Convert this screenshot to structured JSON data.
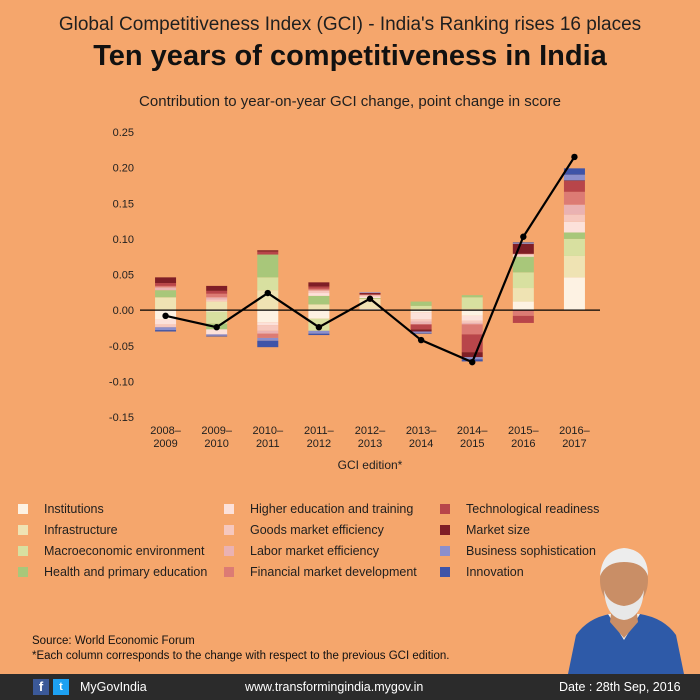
{
  "header": {
    "supertitle": "Global Competitiveness Index (GCI) - India's Ranking rises 16 places",
    "title": "Ten years of competitiveness in India"
  },
  "chart_data": {
    "type": "bar",
    "stacked": true,
    "subtitle": "Contribution to year-on-year GCI change, point change in score",
    "xlabel": "GCI edition*",
    "ylabel": "",
    "ylim": [
      -0.15,
      0.25
    ],
    "yticks": [
      "0.25",
      "0.20",
      "0.15",
      "0.10",
      "0.05",
      "0.00",
      "-0.05",
      "-0.10",
      "-0.15"
    ],
    "categories": [
      [
        "2008–",
        "2009"
      ],
      [
        "2009–",
        "2010"
      ],
      [
        "2010–",
        "2011"
      ],
      [
        "2011–",
        "2012"
      ],
      [
        "2012–",
        "2013"
      ],
      [
        "2013–",
        "2014"
      ],
      [
        "2014–",
        "2015"
      ],
      [
        "2015–",
        "2016"
      ],
      [
        "2016–",
        "2017"
      ]
    ],
    "series": [
      {
        "name": "Institutions",
        "color": "#FDF2E3",
        "values": [
          -0.013,
          -0.002,
          -0.017,
          -0.012,
          0.002,
          -0.003,
          -0.008,
          0.012,
          0.046
        ]
      },
      {
        "name": "Infrastructure",
        "color": "#EFE3B3",
        "values": [
          0.018,
          0.012,
          0.028,
          0.008,
          0.014,
          0.002,
          0.002,
          0.019,
          0.03
        ]
      },
      {
        "name": "Macroeconomic environment",
        "color": "#D8E0A0",
        "values": [
          0,
          -0.017,
          0.018,
          -0.017,
          0,
          0.004,
          0.016,
          0.022,
          0.024
        ]
      },
      {
        "name": "Health and primary education",
        "color": "#A8C77A",
        "values": [
          0.01,
          -0.008,
          0.032,
          0.012,
          0.001,
          0.006,
          0.003,
          0.022,
          0.009
        ]
      },
      {
        "name": "Higher education and training",
        "color": "#FCE1DA",
        "values": [
          -0.007,
          -0.007,
          -0.004,
          0.004,
          0.002,
          -0.01,
          -0.007,
          0.002,
          0.015
        ]
      },
      {
        "name": "Goods market efficiency",
        "color": "#F6C8BE",
        "values": [
          -0.004,
          0.003,
          -0.008,
          0.003,
          0.002,
          -0.003,
          -0.003,
          0.001,
          0.01
        ]
      },
      {
        "name": "Labor market efficiency",
        "color": "#EAB2B2",
        "values": [
          0.004,
          0.003,
          -0.004,
          0.001,
          0,
          -0.004,
          -0.002,
          0.001,
          0.014
        ]
      },
      {
        "name": "Financial market development",
        "color": "#DC7B74",
        "values": [
          0.002,
          0.005,
          -0.006,
          0.002,
          0.001,
          0,
          -0.014,
          -0.008,
          0.018
        ]
      },
      {
        "name": "Technological readiness",
        "color": "#B8454A",
        "values": [
          0.004,
          0.004,
          0.004,
          0.003,
          0,
          -0.007,
          -0.025,
          -0.01,
          0.015
        ]
      },
      {
        "name": "Market size",
        "color": "#7F1E26",
        "values": [
          0.008,
          0.007,
          0.002,
          0.006,
          0.002,
          -0.003,
          -0.007,
          0.014,
          0.001
        ]
      },
      {
        "name": "Business sophistication",
        "color": "#8C8FCC",
        "values": [
          -0.004,
          -0.002,
          -0.004,
          -0.004,
          0.001,
          -0.002,
          -0.003,
          0.001,
          0.008
        ]
      },
      {
        "name": "Innovation",
        "color": "#3F54A8",
        "values": [
          -0.002,
          -0.001,
          -0.009,
          -0.002,
          0,
          -0.001,
          -0.003,
          0.001,
          0.009
        ]
      }
    ],
    "line": {
      "values": [
        -0.008,
        -0.024,
        0.024,
        -0.024,
        0.016,
        -0.042,
        -0.073,
        0.103,
        0.215
      ],
      "color": "#000000"
    }
  },
  "source": {
    "line1": "Source: World Economic Forum",
    "line2": "*Each column corresponds to the change with respect to the previous GCI edition."
  },
  "footer": {
    "fb_glyph": "f",
    "tw_glyph": "t",
    "handle": "MyGovIndia",
    "url": "www.transformingindia.mygov.in",
    "date": "Date : 28th Sep, 2016"
  }
}
